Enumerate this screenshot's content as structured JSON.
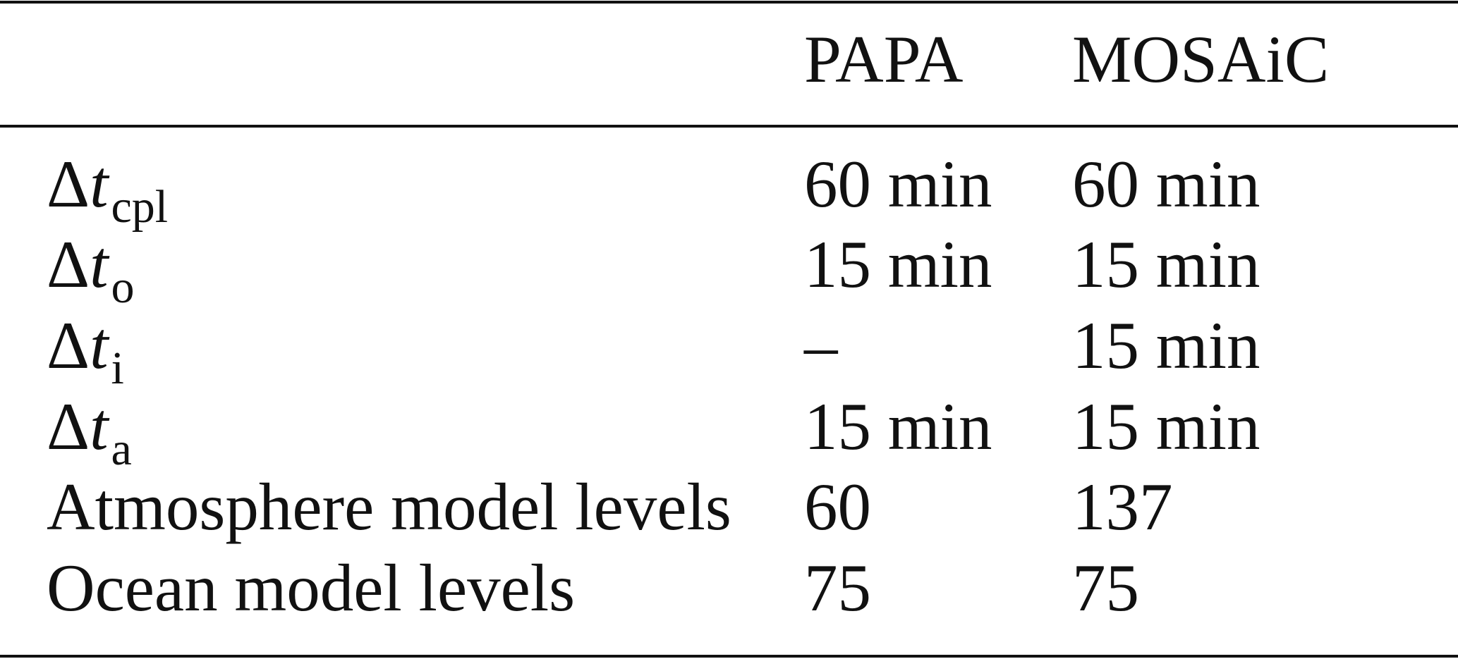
{
  "table": {
    "header": [
      "PAPA",
      "MOSAiC"
    ],
    "rows": [
      {
        "label": {
          "delta": "Δ",
          "var": "t",
          "sub": "cpl"
        },
        "cells": [
          "60 min",
          "60 min"
        ]
      },
      {
        "label": {
          "delta": "Δ",
          "var": "t",
          "sub": "o"
        },
        "cells": [
          "15 min",
          "15 min"
        ]
      },
      {
        "label": {
          "delta": "Δ",
          "var": "t",
          "sub": "i"
        },
        "cells": [
          "–",
          "15 min"
        ]
      },
      {
        "label": {
          "delta": "Δ",
          "var": "t",
          "sub": "a"
        },
        "cells": [
          "15 min",
          "15 min"
        ]
      },
      {
        "label": "Atmosphere model levels",
        "cells": [
          "60",
          "137"
        ]
      },
      {
        "label": "Ocean model levels",
        "cells": [
          "75",
          "75"
        ]
      }
    ]
  }
}
